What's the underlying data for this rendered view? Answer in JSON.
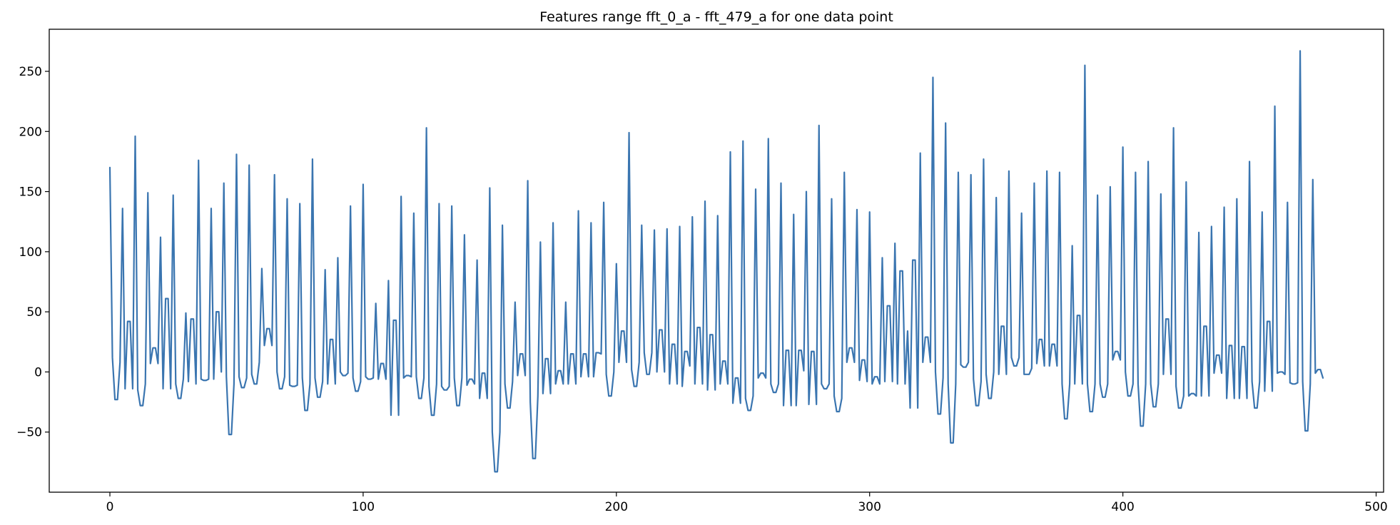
{
  "chart_data": {
    "type": "line",
    "title": "Features range fft_0_a - fft_479_a for one data point",
    "xlabel": "",
    "ylabel": "",
    "xlim": [
      -23.95,
      502.95
    ],
    "ylim": [
      -100,
      285
    ],
    "grid": false,
    "legend": "none",
    "line_color": "#3a75b0",
    "x_ticks": [
      0,
      100,
      200,
      300,
      400,
      500
    ],
    "x_tick_labels": [
      "0",
      "100",
      "200",
      "300",
      "400",
      "500"
    ],
    "y_ticks": [
      -50,
      0,
      50,
      100,
      150,
      200,
      250
    ],
    "y_tick_labels": [
      "−50",
      "0",
      "50",
      "100",
      "150",
      "200",
      "250"
    ],
    "series": [
      {
        "x_start": 0,
        "x_step": 1,
        "values": [
          170,
          12,
          -23,
          -23,
          8,
          136,
          -14,
          42,
          42,
          -14,
          196,
          -15,
          -28,
          -28,
          -10,
          149,
          7,
          20,
          20,
          7,
          112,
          -14,
          61,
          61,
          -14,
          147,
          -10,
          -22,
          -22,
          -6,
          49,
          -8,
          44,
          44,
          -10,
          176,
          -6,
          -7,
          -7,
          -6,
          136,
          -6,
          50,
          50,
          0,
          157,
          -4,
          -52,
          -52,
          -10,
          181,
          -4,
          -13,
          -13,
          -5,
          172,
          -2,
          -10,
          -10,
          8,
          86,
          22,
          36,
          36,
          22,
          164,
          0,
          -14,
          -14,
          -4,
          144,
          -11,
          -12,
          -12,
          -11,
          140,
          -5,
          -32,
          -32,
          -10,
          177,
          -5,
          -21,
          -21,
          -8,
          85,
          -10,
          27,
          27,
          -10,
          95,
          0,
          -3,
          -3,
          -1,
          138,
          -5,
          -16,
          -16,
          -8,
          156,
          -4,
          -6,
          -6,
          -5,
          57,
          -6,
          7,
          7,
          -6,
          76,
          -36,
          43,
          43,
          -36,
          146,
          -5,
          -3,
          -3,
          -4,
          132,
          -4,
          -22,
          -22,
          -5,
          203,
          -12,
          -36,
          -36,
          -10,
          140,
          -12,
          -15,
          -15,
          -12,
          138,
          -5,
          -28,
          -28,
          -5,
          114,
          -11,
          -6,
          -6,
          -10,
          93,
          -22,
          -1,
          -1,
          -22,
          153,
          -50,
          -83,
          -83,
          -50,
          122,
          -10,
          -30,
          -30,
          -8,
          58,
          -3,
          15,
          15,
          -3,
          159,
          -25,
          -72,
          -72,
          -20,
          108,
          -18,
          11,
          11,
          -18,
          124,
          -10,
          1,
          1,
          -10,
          58,
          -10,
          15,
          15,
          -10,
          134,
          -4,
          15,
          15,
          -4,
          124,
          -4,
          16,
          16,
          15,
          141,
          -2,
          -20,
          -20,
          0,
          90,
          8,
          34,
          34,
          8,
          199,
          2,
          -12,
          -12,
          8,
          122,
          16,
          -2,
          -2,
          16,
          118,
          0,
          35,
          35,
          0,
          119,
          -10,
          23,
          23,
          -10,
          121,
          -12,
          17,
          17,
          5,
          129,
          -10,
          37,
          37,
          -10,
          142,
          -15,
          31,
          31,
          -15,
          130,
          -10,
          9,
          9,
          -10,
          183,
          -26,
          -5,
          -5,
          -26,
          192,
          -22,
          -32,
          -32,
          -20,
          152,
          -5,
          -1,
          -1,
          -5,
          194,
          -10,
          -17,
          -17,
          -10,
          157,
          -28,
          18,
          18,
          -28,
          131,
          -28,
          18,
          18,
          1,
          150,
          -27,
          17,
          17,
          -27,
          205,
          -10,
          -14,
          -14,
          -10,
          144,
          -20,
          -33,
          -33,
          -22,
          166,
          8,
          20,
          20,
          8,
          135,
          -7,
          10,
          10,
          -8,
          133,
          -10,
          -4,
          -4,
          -10,
          95,
          -8,
          55,
          55,
          -8,
          107,
          -10,
          84,
          84,
          -10,
          34,
          -30,
          93,
          93,
          -30,
          182,
          8,
          29,
          29,
          8,
          245,
          0,
          -35,
          -35,
          -5,
          207,
          -10,
          -59,
          -59,
          -10,
          166,
          6,
          4,
          4,
          8,
          164,
          -6,
          -28,
          -28,
          -8,
          177,
          -2,
          -22,
          -22,
          0,
          145,
          -2,
          38,
          38,
          -2,
          167,
          12,
          5,
          5,
          12,
          132,
          -2,
          -2,
          -2,
          3,
          157,
          7,
          27,
          27,
          5,
          167,
          5,
          23,
          23,
          5,
          166,
          -10,
          -39,
          -39,
          -10,
          105,
          -10,
          47,
          47,
          -10,
          255,
          -10,
          -33,
          -33,
          -10,
          147,
          -10,
          -21,
          -21,
          -10,
          154,
          10,
          17,
          17,
          10,
          187,
          0,
          -20,
          -20,
          -10,
          166,
          -10,
          -45,
          -45,
          -10,
          175,
          -10,
          -29,
          -29,
          -10,
          148,
          -2,
          44,
          44,
          -2,
          203,
          -12,
          -30,
          -30,
          -20,
          158,
          -20,
          -18,
          -18,
          -20,
          116,
          -20,
          38,
          38,
          -20,
          121,
          -1,
          14,
          14,
          -1,
          137,
          -22,
          22,
          22,
          -22,
          144,
          -22,
          21,
          21,
          -22,
          175,
          -8,
          -30,
          -30,
          -8,
          133,
          -16,
          42,
          42,
          -16,
          221,
          -1,
          0,
          0,
          -2,
          141,
          -9,
          -10,
          -10,
          -9,
          267,
          -8,
          -49,
          -49,
          -10,
          160,
          -1,
          2,
          2,
          -5
        ]
      }
    ]
  }
}
